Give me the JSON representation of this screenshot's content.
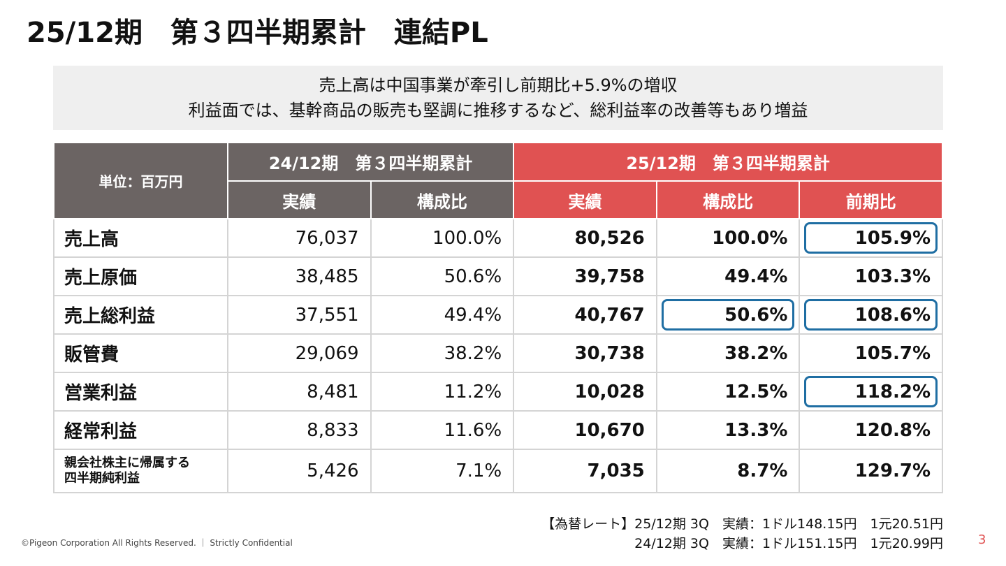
{
  "title": "25/12期　第３四半期累計　連結PL",
  "summary": [
    "売上高は中国事業が牽引し前期比+5.9%の増収",
    "利益面では、基幹商品の販売も堅調に推移するなど、総利益率の改善等もあり増益"
  ],
  "table": {
    "unit": "単位：百万円",
    "groups": [
      "24/12期　第３四半期累計",
      "25/12期　第３四半期累計"
    ],
    "columns": [
      "実績",
      "構成比",
      "実績",
      "構成比",
      "前期比"
    ],
    "rows": [
      {
        "label": [
          "売上高"
        ],
        "cells": [
          "76,037",
          "100.0%",
          "80,526",
          "100.0%",
          "105.9%"
        ]
      },
      {
        "label": [
          "売上原価"
        ],
        "cells": [
          "38,485",
          "50.6%",
          "39,758",
          "49.4%",
          "103.3%"
        ]
      },
      {
        "label": [
          "売上総利益"
        ],
        "cells": [
          "37,551",
          "49.4%",
          "40,767",
          "50.6%",
          "108.6%"
        ]
      },
      {
        "label": [
          "販管費"
        ],
        "cells": [
          "29,069",
          "38.2%",
          "30,738",
          "38.2%",
          "105.7%"
        ]
      },
      {
        "label": [
          "営業利益"
        ],
        "cells": [
          "8,481",
          "11.2%",
          "10,028",
          "12.5%",
          "118.2%"
        ]
      },
      {
        "label": [
          "経常利益"
        ],
        "cells": [
          "8,833",
          "11.6%",
          "10,670",
          "13.3%",
          "120.8%"
        ]
      },
      {
        "label": [
          "親会社株主に帰属する",
          "四半期純利益"
        ],
        "cells": [
          "5,426",
          "7.1%",
          "7,035",
          "8.7%",
          "129.7%"
        ]
      }
    ]
  },
  "footnote": {
    "label": "【為替レート】",
    "lines": [
      "25/12期 3Q　実績：1ドル148.15円　1元20.51円",
      "24/12期 3Q　実績：1ドル151.15円　1元20.99円"
    ]
  },
  "copyright": "©Pigeon Corporation All Rights Reserved. ｜ Strictly Confidential",
  "page_number": "3"
}
